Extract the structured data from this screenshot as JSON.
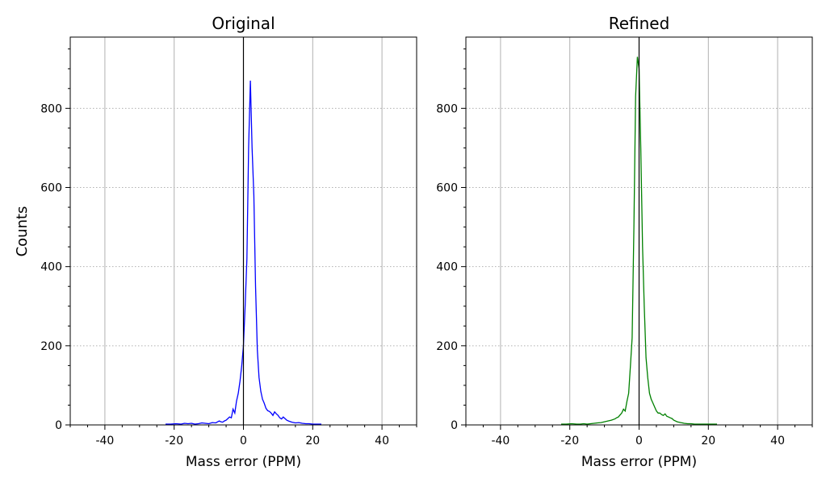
{
  "chart_data": [
    {
      "type": "line",
      "title": "Original",
      "xlabel": "Mass error (PPM)",
      "ylabel": "Counts",
      "xlim": [
        -50,
        50
      ],
      "ylim": [
        0,
        980
      ],
      "xticks": [
        -40,
        -20,
        0,
        20,
        40
      ],
      "xtick_labels": [
        "-40",
        "-20",
        "0",
        "20",
        "40"
      ],
      "yticks": [
        0,
        200,
        400,
        600,
        800
      ],
      "ytick_labels": [
        "0",
        "200",
        "400",
        "600",
        "800"
      ],
      "grid": {
        "x": "solid-gray",
        "y": "dotted"
      },
      "vline": 0,
      "series": [
        {
          "color": "#0000ff",
          "x": [
            -22.5,
            -21,
            -19.5,
            -18,
            -17,
            -16,
            -15,
            -14,
            -13,
            -12,
            -11,
            -10,
            -9,
            -8,
            -7,
            -6.5,
            -6,
            -5.5,
            -5,
            -4.5,
            -4,
            -3.5,
            -3,
            -2.5,
            -2,
            -1.5,
            -1,
            -0.5,
            0,
            0.5,
            1,
            1.5,
            2,
            2.5,
            3,
            3.5,
            4,
            4.5,
            5,
            5.5,
            6,
            6.5,
            7,
            7.5,
            8,
            8.5,
            9,
            9.5,
            10,
            10.5,
            11,
            11.5,
            12,
            12.5,
            13,
            14,
            15,
            16,
            17,
            18,
            19,
            20,
            21,
            22.5
          ],
          "y": [
            2,
            2,
            3,
            2,
            4,
            3,
            4,
            2,
            3,
            5,
            4,
            3,
            6,
            5,
            10,
            8,
            7,
            10,
            12,
            16,
            20,
            18,
            40,
            30,
            60,
            80,
            110,
            150,
            200,
            300,
            420,
            700,
            870,
            700,
            580,
            350,
            190,
            120,
            85,
            65,
            55,
            42,
            36,
            34,
            30,
            24,
            33,
            28,
            24,
            18,
            15,
            20,
            16,
            12,
            10,
            7,
            5,
            6,
            4,
            3,
            3,
            2,
            2,
            2
          ]
        }
      ]
    },
    {
      "type": "line",
      "title": "Refined",
      "xlabel": "Mass error (PPM)",
      "ylabel": "",
      "xlim": [
        -50,
        50
      ],
      "ylim": [
        0,
        980
      ],
      "xticks": [
        -40,
        -20,
        0,
        20,
        40
      ],
      "xtick_labels": [
        "-40",
        "-20",
        "0",
        "20",
        "40"
      ],
      "yticks": [
        0,
        200,
        400,
        600,
        800
      ],
      "ytick_labels": [
        "0",
        "200",
        "400",
        "600",
        "800"
      ],
      "grid": {
        "x": "solid-gray",
        "y": "dotted"
      },
      "vline": 0,
      "series": [
        {
          "color": "#008000",
          "x": [
            -22.5,
            -21,
            -19.5,
            -18,
            -17,
            -16,
            -15,
            -14,
            -13,
            -12,
            -11,
            -10,
            -9,
            -8,
            -7,
            -6.5,
            -6,
            -5.5,
            -5,
            -4.5,
            -4,
            -3.5,
            -3,
            -2.5,
            -2,
            -1.5,
            -1,
            -0.5,
            0,
            0.5,
            1,
            1.5,
            2,
            2.5,
            3,
            3.5,
            4,
            4.5,
            5,
            5.5,
            6,
            6.5,
            7,
            7.5,
            8,
            8.5,
            9,
            9.5,
            10,
            10.5,
            11,
            11.5,
            12,
            12.5,
            13,
            14,
            15,
            16,
            17,
            18,
            19,
            20,
            21,
            22.5
          ],
          "y": [
            2,
            2,
            3,
            2,
            2,
            3,
            2,
            3,
            4,
            5,
            6,
            8,
            10,
            12,
            15,
            18,
            20,
            25,
            30,
            40,
            35,
            60,
            80,
            150,
            220,
            500,
            830,
            930,
            900,
            700,
            450,
            300,
            170,
            120,
            80,
            65,
            55,
            45,
            35,
            30,
            30,
            26,
            24,
            28,
            22,
            20,
            18,
            16,
            12,
            10,
            8,
            7,
            6,
            5,
            4,
            3,
            3,
            2,
            2,
            2,
            2,
            2,
            2,
            2
          ]
        }
      ]
    }
  ]
}
